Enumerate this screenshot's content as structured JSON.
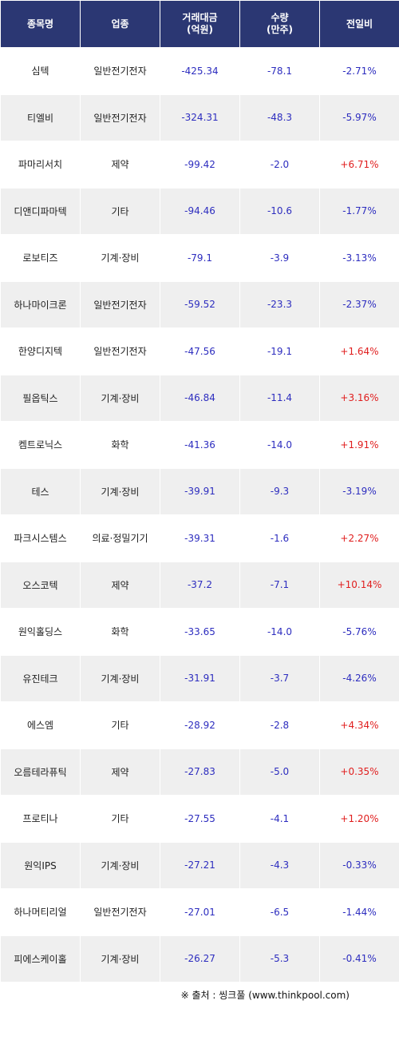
{
  "headers": {
    "name": "종목명",
    "sector": "업종",
    "amount_line1": "거래대금",
    "amount_line2": "(억원)",
    "volume_line1": "수량",
    "volume_line2": "(만주)",
    "change": "전일비"
  },
  "rows": [
    {
      "name": "심텍",
      "sector": "일반전기전자",
      "amount": "-425.34",
      "volume": "-78.1",
      "change": "-2.71%",
      "dir": "down"
    },
    {
      "name": "티엘비",
      "sector": "일반전기전자",
      "amount": "-324.31",
      "volume": "-48.3",
      "change": "-5.97%",
      "dir": "down"
    },
    {
      "name": "파마리서치",
      "sector": "제약",
      "amount": "-99.42",
      "volume": "-2.0",
      "change": "+6.71%",
      "dir": "up"
    },
    {
      "name": "디앤디파마텍",
      "sector": "기타",
      "amount": "-94.46",
      "volume": "-10.6",
      "change": "-1.77%",
      "dir": "down"
    },
    {
      "name": "로보티즈",
      "sector": "기계·장비",
      "amount": "-79.1",
      "volume": "-3.9",
      "change": "-3.13%",
      "dir": "down"
    },
    {
      "name": "하나마이크론",
      "sector": "일반전기전자",
      "amount": "-59.52",
      "volume": "-23.3",
      "change": "-2.37%",
      "dir": "down"
    },
    {
      "name": "한양디지텍",
      "sector": "일반전기전자",
      "amount": "-47.56",
      "volume": "-19.1",
      "change": "+1.64%",
      "dir": "up"
    },
    {
      "name": "필옵틱스",
      "sector": "기계·장비",
      "amount": "-46.84",
      "volume": "-11.4",
      "change": "+3.16%",
      "dir": "up"
    },
    {
      "name": "켐트로닉스",
      "sector": "화학",
      "amount": "-41.36",
      "volume": "-14.0",
      "change": "+1.91%",
      "dir": "up"
    },
    {
      "name": "테스",
      "sector": "기계·장비",
      "amount": "-39.91",
      "volume": "-9.3",
      "change": "-3.19%",
      "dir": "down"
    },
    {
      "name": "파크시스템스",
      "sector": "의료·정밀기기",
      "amount": "-39.31",
      "volume": "-1.6",
      "change": "+2.27%",
      "dir": "up"
    },
    {
      "name": "오스코텍",
      "sector": "제약",
      "amount": "-37.2",
      "volume": "-7.1",
      "change": "+10.14%",
      "dir": "up"
    },
    {
      "name": "원익홀딩스",
      "sector": "화학",
      "amount": "-33.65",
      "volume": "-14.0",
      "change": "-5.76%",
      "dir": "down"
    },
    {
      "name": "유진테크",
      "sector": "기계·장비",
      "amount": "-31.91",
      "volume": "-3.7",
      "change": "-4.26%",
      "dir": "down"
    },
    {
      "name": "에스엠",
      "sector": "기타",
      "amount": "-28.92",
      "volume": "-2.8",
      "change": "+4.34%",
      "dir": "up"
    },
    {
      "name": "오름테라퓨틱",
      "sector": "제약",
      "amount": "-27.83",
      "volume": "-5.0",
      "change": "+0.35%",
      "dir": "up"
    },
    {
      "name": "프로티나",
      "sector": "기타",
      "amount": "-27.55",
      "volume": "-4.1",
      "change": "+1.20%",
      "dir": "up"
    },
    {
      "name": "원익IPS",
      "sector": "기계·장비",
      "amount": "-27.21",
      "volume": "-4.3",
      "change": "-0.33%",
      "dir": "down"
    },
    {
      "name": "하나머티리얼",
      "sector": "일반전기전자",
      "amount": "-27.01",
      "volume": "-6.5",
      "change": "-1.44%",
      "dir": "down"
    },
    {
      "name": "피에스케이홀",
      "sector": "기계·장비",
      "amount": "-26.27",
      "volume": "-5.3",
      "change": "-0.41%",
      "dir": "down"
    }
  ],
  "source": "※ 출처 : 씽크풀 (www.thinkpool.com)",
  "colors": {
    "header_bg": "#2b3773",
    "up": "#e01e1e",
    "down": "#2d2dbf",
    "stripe": "#efefef"
  }
}
